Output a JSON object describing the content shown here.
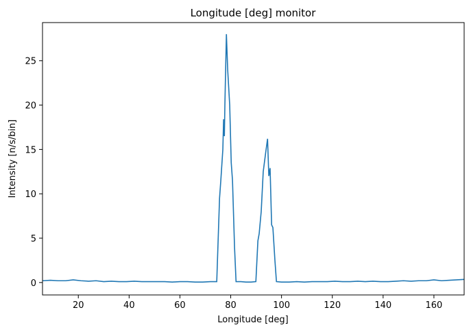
{
  "chart_data": {
    "type": "line",
    "title": "Longitude [deg] monitor",
    "x_label": "Longitude [deg]",
    "y_label": "Intensity [n/s/bin]",
    "xlim": [
      5.9,
      171.9
    ],
    "ylim": [
      -1.4,
      29.3
    ],
    "xticks": [
      20,
      40,
      60,
      80,
      100,
      120,
      140,
      160
    ],
    "yticks": [
      0,
      5,
      10,
      15,
      20,
      25
    ],
    "series": [
      {
        "color": "#1f77b4",
        "x": [
          5.9,
          9,
          12,
          15,
          18,
          21,
          24,
          27,
          30,
          33,
          36,
          39,
          42,
          45,
          48,
          51,
          54,
          57,
          60,
          63,
          66,
          69,
          72,
          74.5,
          75.6,
          76.1,
          76.9,
          77.2,
          77.5,
          77.7,
          78.3,
          78.8,
          79.6,
          80.2,
          80.7,
          81.5,
          82.1,
          84,
          86,
          88,
          89.9,
          90.7,
          91.2,
          92.0,
          92.8,
          93.7,
          94.5,
          95.0,
          95.5,
          96.1,
          96.6,
          97.4,
          98.0,
          100,
          103,
          106,
          109,
          112,
          115,
          118,
          121,
          124,
          127,
          130,
          133,
          136,
          139,
          142,
          145,
          148,
          151,
          154,
          157,
          160,
          163,
          166,
          169,
          171.9
        ],
        "values": [
          0.2,
          0.25,
          0.2,
          0.2,
          0.3,
          0.2,
          0.15,
          0.2,
          0.1,
          0.15,
          0.1,
          0.1,
          0.15,
          0.1,
          0.1,
          0.1,
          0.1,
          0.05,
          0.1,
          0.1,
          0.05,
          0.05,
          0.1,
          0.1,
          9.5,
          11.5,
          15,
          18.4,
          16.5,
          20,
          28,
          24,
          20,
          13.5,
          11.5,
          4,
          0.1,
          0.1,
          0.05,
          0.05,
          0.1,
          4.7,
          5.5,
          8,
          12.5,
          14.5,
          16.2,
          12,
          12.9,
          6.5,
          6.2,
          2.5,
          0.1,
          0.05,
          0.05,
          0.1,
          0.05,
          0.1,
          0.1,
          0.1,
          0.15,
          0.1,
          0.1,
          0.15,
          0.1,
          0.15,
          0.1,
          0.1,
          0.15,
          0.2,
          0.15,
          0.2,
          0.2,
          0.3,
          0.2,
          0.25,
          0.3,
          0.35
        ]
      }
    ]
  }
}
